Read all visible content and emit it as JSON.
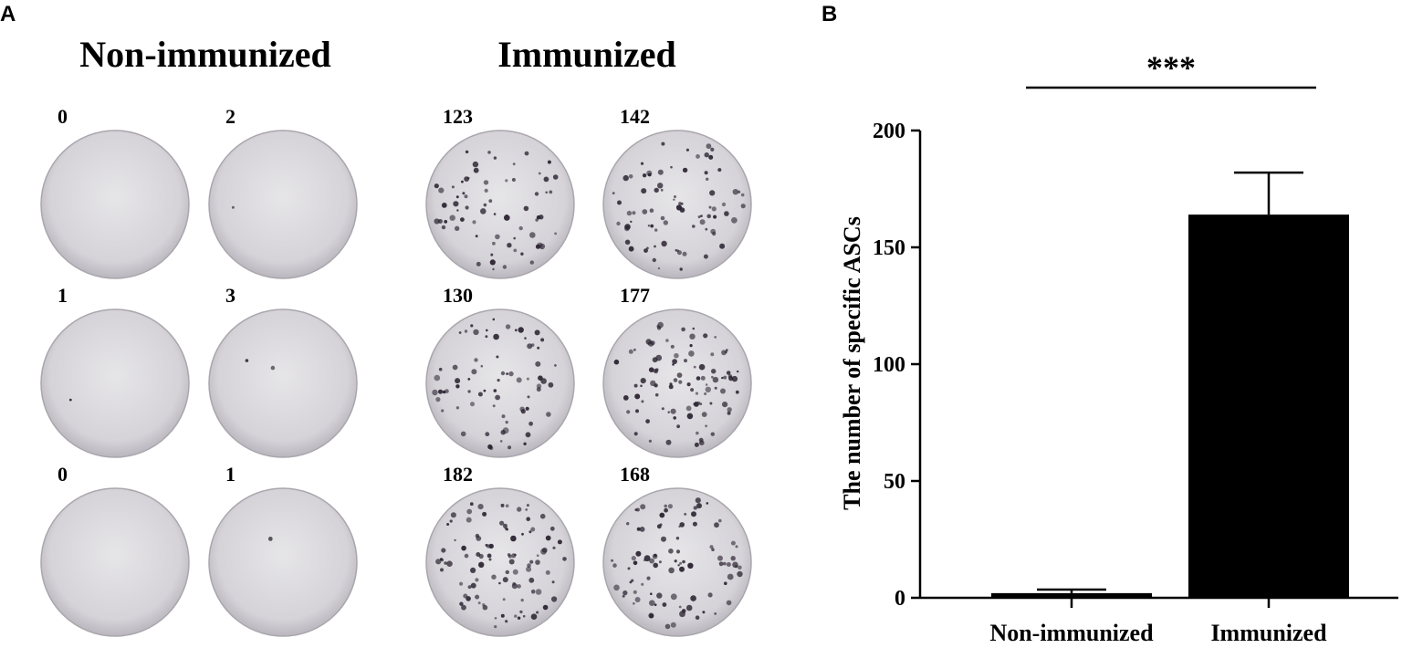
{
  "panels": {
    "a_label": "A",
    "b_label": "B"
  },
  "wells": {
    "groups": [
      {
        "title": "Non-immunized",
        "counts": [
          0,
          2,
          1,
          3,
          0,
          1
        ]
      },
      {
        "title": "Immunized",
        "counts": [
          123,
          142,
          130,
          177,
          182,
          168
        ]
      }
    ],
    "colors": {
      "well_light": "#d8d6da",
      "well_edge": "#a9a6ad",
      "spot": "#2a2230"
    }
  },
  "chart_data": {
    "type": "bar",
    "categories": [
      "Non-immunized",
      "Immunized"
    ],
    "values": [
      2,
      164
    ],
    "error": [
      1.5,
      18
    ],
    "ylabel": "The number of specific ASCs",
    "ylim": [
      0,
      200
    ],
    "yticks": [
      0,
      50,
      100,
      150,
      200
    ],
    "significance": "***",
    "bar_color": "#000000",
    "grid": false
  }
}
